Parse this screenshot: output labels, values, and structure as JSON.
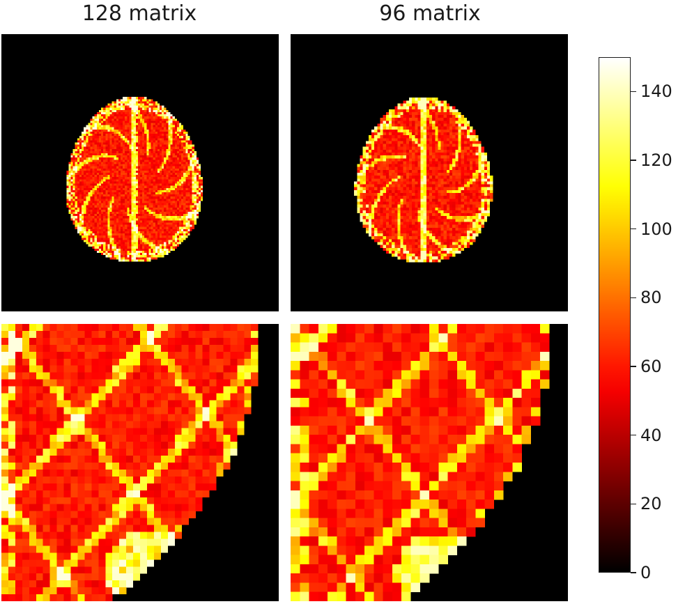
{
  "chart_data": [
    {
      "type": "heatmap",
      "title": "128 matrix",
      "view": "full axial slice",
      "colormap": "hot",
      "vmin": 0,
      "vmax": 150,
      "background_value": 0,
      "tissue_typical_value": 60,
      "vessel_peak_value": 145
    },
    {
      "type": "heatmap",
      "title": "96 matrix",
      "view": "full axial slice",
      "colormap": "hot",
      "vmin": 0,
      "vmax": 150,
      "background_value": 0,
      "tissue_typical_value": 60,
      "vessel_peak_value": 140
    },
    {
      "type": "heatmap",
      "title": "",
      "view": "zoomed region (128 matrix)",
      "colormap": "hot",
      "vmin": 0,
      "vmax": 150,
      "tissue_typical_value": 60,
      "vessel_peak_value": 145
    },
    {
      "type": "heatmap",
      "title": "",
      "view": "zoomed region (96 matrix)",
      "colormap": "hot",
      "vmin": 0,
      "vmax": 150,
      "tissue_typical_value": 60,
      "vessel_peak_value": 140
    }
  ],
  "colorbar": {
    "range": [
      0,
      150
    ],
    "ticks": [
      "0",
      "20",
      "40",
      "60",
      "80",
      "100",
      "120",
      "140"
    ],
    "colormap": "hot"
  }
}
